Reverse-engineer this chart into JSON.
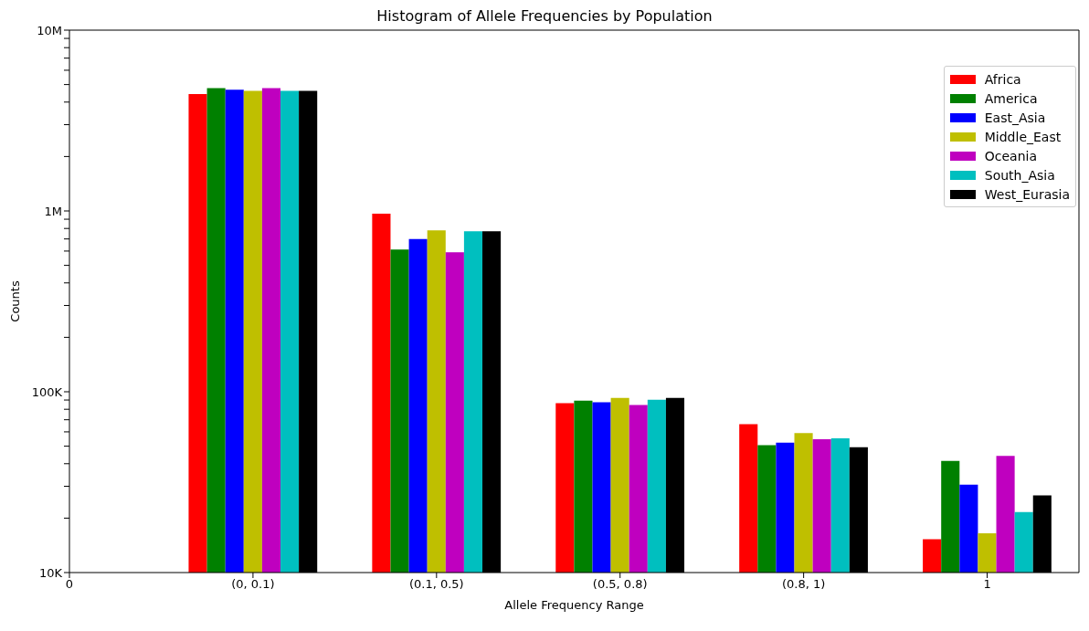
{
  "chart_data": {
    "type": "bar",
    "title": "Histogram of Allele Frequencies by Population",
    "xlabel": "Allele Frequency Range",
    "ylabel": "Counts",
    "categories": [
      "0",
      "(0, 0.1)",
      "(0.1, 0.5)",
      "(0.5, 0.8)",
      "(0.8, 1)",
      "1"
    ],
    "log": "y",
    "ylim": [
      10000,
      10000000
    ],
    "yticks": [
      {
        "value": 10000,
        "label": "10K"
      },
      {
        "value": 20000,
        "label": null
      },
      {
        "value": 30000,
        "label": null
      },
      {
        "value": 40000,
        "label": null
      },
      {
        "value": 50000,
        "label": null
      },
      {
        "value": 60000,
        "label": null
      },
      {
        "value": 70000,
        "label": null
      },
      {
        "value": 80000,
        "label": null
      },
      {
        "value": 90000,
        "label": null
      },
      {
        "value": 100000,
        "label": "100K"
      },
      {
        "value": 200000,
        "label": null
      },
      {
        "value": 300000,
        "label": null
      },
      {
        "value": 400000,
        "label": null
      },
      {
        "value": 500000,
        "label": null
      },
      {
        "value": 600000,
        "label": null
      },
      {
        "value": 700000,
        "label": null
      },
      {
        "value": 800000,
        "label": null
      },
      {
        "value": 900000,
        "label": null
      },
      {
        "value": 1000000,
        "label": "1M"
      },
      {
        "value": 2000000,
        "label": null
      },
      {
        "value": 3000000,
        "label": null
      },
      {
        "value": 4000000,
        "label": null
      },
      {
        "value": 5000000,
        "label": null
      },
      {
        "value": 6000000,
        "label": null
      },
      {
        "value": 7000000,
        "label": null
      },
      {
        "value": 8000000,
        "label": null
      },
      {
        "value": 9000000,
        "label": null
      },
      {
        "value": 10000000,
        "label": "10M"
      }
    ],
    "legend": "top right",
    "series": [
      {
        "name": "Africa",
        "color": "#ff0000",
        "values": [
          null,
          4430000,
          966000,
          86500,
          66100,
          15300
        ]
      },
      {
        "name": "America",
        "color": "#008000",
        "values": [
          null,
          4780000,
          611000,
          89400,
          50600,
          41400
        ]
      },
      {
        "name": "East_Asia",
        "color": "#0000ff",
        "values": [
          null,
          4680000,
          700000,
          87400,
          52300,
          30600
        ]
      },
      {
        "name": "Middle_East",
        "color": "#bfbf00",
        "values": [
          null,
          4620000,
          782000,
          92500,
          59100,
          16500
        ]
      },
      {
        "name": "Oceania",
        "color": "#bf00bf",
        "values": [
          null,
          4780000,
          591000,
          84600,
          54700,
          44200
        ]
      },
      {
        "name": "South_Asia",
        "color": "#00bfbf",
        "values": [
          null,
          4620000,
          773000,
          90400,
          55300,
          21600
        ]
      },
      {
        "name": "West_Eurasia",
        "color": "#000000",
        "values": [
          null,
          4620000,
          773000,
          92500,
          49400,
          26700
        ]
      }
    ]
  }
}
